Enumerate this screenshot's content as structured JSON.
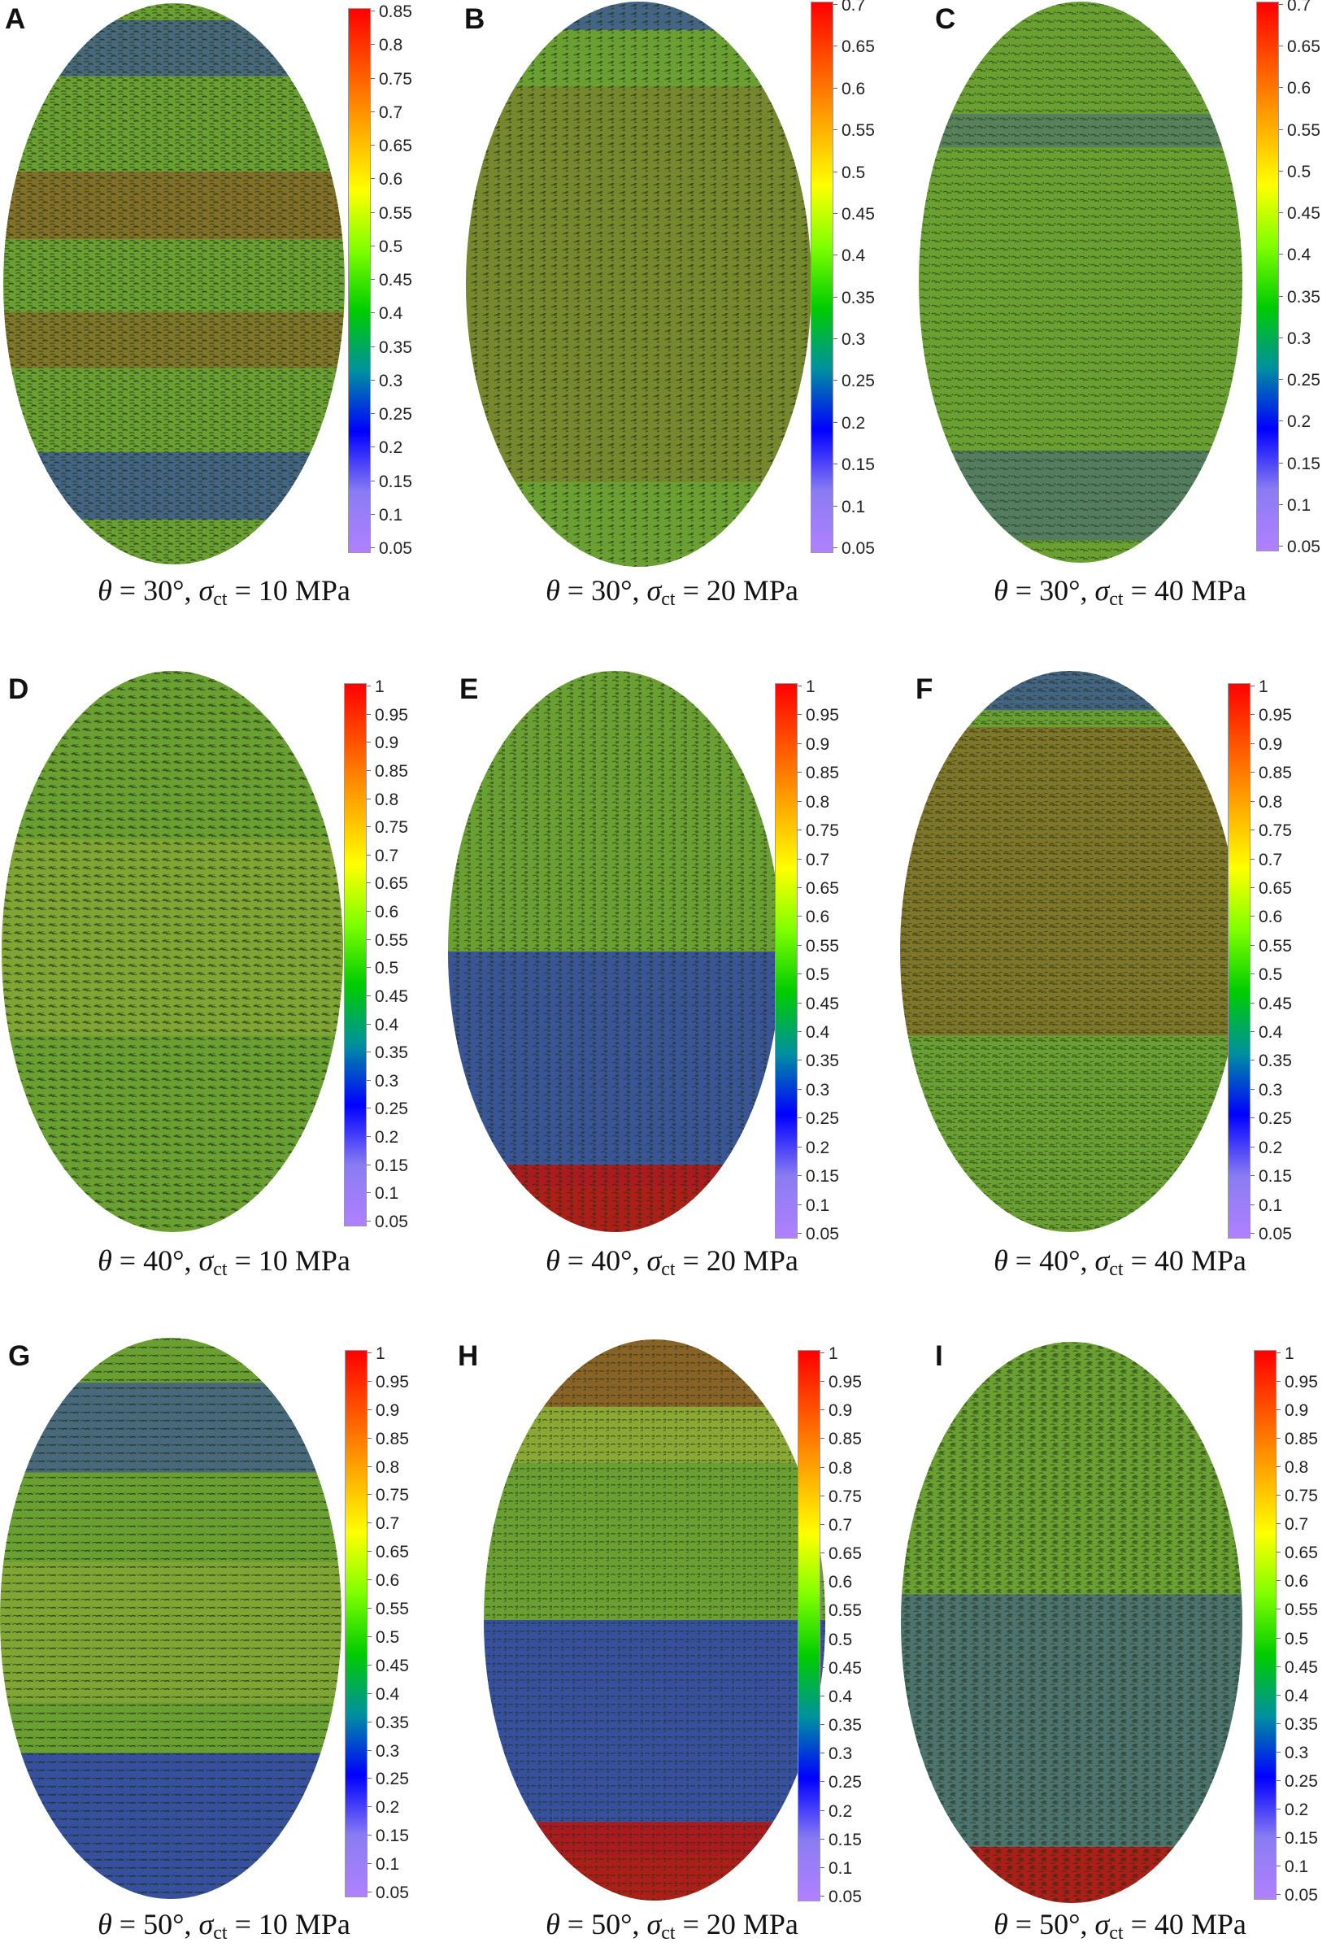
{
  "colormap": {
    "stops": [
      "#b080ff",
      "#8a7cf2",
      "#0000ff",
      "#0090a0",
      "#00cc00",
      "#7fff00",
      "#ffff00",
      "#ffaa00",
      "#ff5500",
      "#ff0000"
    ],
    "green": "#6aa032",
    "blue": "#2a3cb8",
    "red": "#b01818",
    "yellow": "#c8b43a"
  },
  "panels": [
    {
      "letter": "A",
      "caption": {
        "theta": "θ",
        "eq1": " = 30°, ",
        "sigma": "σ",
        "sub": "ct",
        "eq2": " = 10 MPa"
      },
      "colorbar": {
        "max": 0.85,
        "ticks": [
          "0.85",
          "0.8",
          "0.75",
          "0.7",
          "0.65",
          "0.6",
          "0.55",
          "0.5",
          "0.45",
          "0.4",
          "0.35",
          "0.3",
          "0.25",
          "0.2",
          "0.15",
          "0.1",
          "0.05"
        ]
      },
      "bands": [
        {
          "y": 0.03,
          "h": 0.1,
          "color": "blue",
          "opacity": 0.55
        },
        {
          "y": 0.3,
          "h": 0.12,
          "color": "red",
          "opacity": 0.35
        },
        {
          "y": 0.55,
          "h": 0.1,
          "color": "red",
          "opacity": 0.3
        },
        {
          "y": 0.8,
          "h": 0.12,
          "color": "blue",
          "opacity": 0.6
        }
      ]
    },
    {
      "letter": "B",
      "caption": {
        "theta": "θ",
        "eq1": " = 30°, ",
        "sigma": "σ",
        "sub": "ct",
        "eq2": " = 20 MPa"
      },
      "colorbar": {
        "max": 0.7,
        "ticks": [
          "0.7",
          "0.65",
          "0.6",
          "0.55",
          "0.5",
          "0.45",
          "0.4",
          "0.35",
          "0.3",
          "0.25",
          "0.2",
          "0.15",
          "0.1",
          "0.05"
        ]
      },
      "bands": [
        {
          "y": 0.0,
          "h": 0.05,
          "color": "blue",
          "opacity": 0.6
        },
        {
          "y": 0.15,
          "h": 0.7,
          "color": "red",
          "opacity": 0.18
        }
      ]
    },
    {
      "letter": "C",
      "caption": {
        "theta": "θ",
        "eq1": " = 30°, ",
        "sigma": "σ",
        "sub": "ct",
        "eq2": " = 40 MPa"
      },
      "colorbar": {
        "max": 0.7,
        "ticks": [
          "0.7",
          "0.65",
          "0.6",
          "0.55",
          "0.5",
          "0.45",
          "0.4",
          "0.35",
          "0.3",
          "0.25",
          "0.2",
          "0.15",
          "0.1",
          "0.05"
        ]
      },
      "bands": [
        {
          "y": 0.2,
          "h": 0.06,
          "color": "blue",
          "opacity": 0.3
        },
        {
          "y": 0.8,
          "h": 0.16,
          "color": "blue",
          "opacity": 0.35
        }
      ]
    },
    {
      "letter": "D",
      "caption": {
        "theta": "θ",
        "eq1": " = 40°, ",
        "sigma": "σ",
        "sub": "ct",
        "eq2": " = 10 MPa"
      },
      "colorbar": {
        "max": 1,
        "ticks": [
          "1",
          "0.95",
          "0.9",
          "0.85",
          "0.8",
          "0.75",
          "0.7",
          "0.65",
          "0.6",
          "0.55",
          "0.5",
          "0.45",
          "0.4",
          "0.35",
          "0.3",
          "0.25",
          "0.2",
          "0.15",
          "0.1",
          "0.05"
        ]
      },
      "bands": [
        {
          "y": 0.3,
          "h": 0.35,
          "color": "yellow",
          "opacity": 0.25
        }
      ]
    },
    {
      "letter": "E",
      "caption": {
        "theta": "θ",
        "eq1": " = 40°, ",
        "sigma": "σ",
        "sub": "ct",
        "eq2": " = 20 MPa"
      },
      "colorbar": {
        "max": 1,
        "ticks": [
          "1",
          "0.95",
          "0.9",
          "0.85",
          "0.8",
          "0.75",
          "0.7",
          "0.65",
          "0.6",
          "0.55",
          "0.5",
          "0.45",
          "0.4",
          "0.35",
          "0.3",
          "0.25",
          "0.2",
          "0.15",
          "0.1",
          "0.05"
        ]
      },
      "bands": [
        {
          "y": 0.5,
          "h": 0.42,
          "color": "blue",
          "opacity": 0.75
        },
        {
          "y": 0.88,
          "h": 0.12,
          "color": "red",
          "opacity": 0.95
        }
      ]
    },
    {
      "letter": "F",
      "caption": {
        "theta": "θ",
        "eq1": " = 40°, ",
        "sigma": "σ",
        "sub": "ct",
        "eq2": " = 40 MPa"
      },
      "colorbar": {
        "max": 1,
        "ticks": [
          "1",
          "0.95",
          "0.9",
          "0.85",
          "0.8",
          "0.75",
          "0.7",
          "0.65",
          "0.6",
          "0.55",
          "0.5",
          "0.45",
          "0.4",
          "0.35",
          "0.3",
          "0.25",
          "0.2",
          "0.15",
          "0.1",
          "0.05"
        ]
      },
      "bands": [
        {
          "y": 0.0,
          "h": 0.07,
          "color": "blue",
          "opacity": 0.6
        },
        {
          "y": 0.1,
          "h": 0.55,
          "color": "red",
          "opacity": 0.3
        }
      ]
    },
    {
      "letter": "G",
      "caption": {
        "theta": "θ",
        "eq1": " = 50°, ",
        "sigma": "σ",
        "sub": "ct",
        "eq2": " = 10 MPa"
      },
      "colorbar": {
        "max": 1,
        "ticks": [
          "1",
          "0.95",
          "0.9",
          "0.85",
          "0.8",
          "0.75",
          "0.7",
          "0.65",
          "0.6",
          "0.55",
          "0.5",
          "0.45",
          "0.4",
          "0.35",
          "0.3",
          "0.25",
          "0.2",
          "0.15",
          "0.1",
          "0.05"
        ]
      },
      "bands": [
        {
          "y": 0.08,
          "h": 0.16,
          "color": "blue",
          "opacity": 0.55
        },
        {
          "y": 0.4,
          "h": 0.25,
          "color": "yellow",
          "opacity": 0.25
        },
        {
          "y": 0.74,
          "h": 0.26,
          "color": "blue",
          "opacity": 0.8
        }
      ]
    },
    {
      "letter": "H",
      "caption": {
        "theta": "θ",
        "eq1": " = 50°, ",
        "sigma": "σ",
        "sub": "ct",
        "eq2": " = 20 MPa"
      },
      "colorbar": {
        "max": 1,
        "ticks": [
          "1",
          "0.95",
          "0.9",
          "0.85",
          "0.8",
          "0.75",
          "0.7",
          "0.65",
          "0.6",
          "0.55",
          "0.5",
          "0.45",
          "0.4",
          "0.35",
          "0.3",
          "0.25",
          "0.2",
          "0.15",
          "0.1",
          "0.05"
        ]
      },
      "bands": [
        {
          "y": 0.0,
          "h": 0.12,
          "color": "red",
          "opacity": 0.45
        },
        {
          "y": 0.12,
          "h": 0.1,
          "color": "yellow",
          "opacity": 0.35
        },
        {
          "y": 0.5,
          "h": 0.42,
          "color": "blue",
          "opacity": 0.8
        },
        {
          "y": 0.86,
          "h": 0.14,
          "color": "red",
          "opacity": 0.95
        }
      ]
    },
    {
      "letter": "I",
      "caption": {
        "theta": "θ",
        "eq1": " = 50°, ",
        "sigma": "σ",
        "sub": "ct",
        "eq2": " = 40 MPa"
      },
      "colorbar": {
        "max": 1,
        "ticks": [
          "1",
          "0.95",
          "0.9",
          "0.85",
          "0.8",
          "0.75",
          "0.7",
          "0.65",
          "0.6",
          "0.55",
          "0.5",
          "0.45",
          "0.4",
          "0.35",
          "0.3",
          "0.25",
          "0.2",
          "0.15",
          "0.1",
          "0.05"
        ]
      },
      "bands": [
        {
          "y": 0.45,
          "h": 0.45,
          "color": "blue",
          "opacity": 0.45
        },
        {
          "y": 0.9,
          "h": 0.1,
          "color": "red",
          "opacity": 0.95
        }
      ]
    }
  ]
}
